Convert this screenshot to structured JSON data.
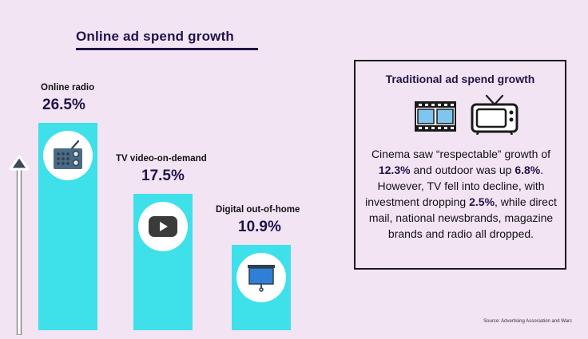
{
  "chart_data": {
    "type": "bar",
    "title": "Online ad spend growth",
    "categories": [
      "Online radio",
      "TV video-on-demand",
      "Digital out-of-home"
    ],
    "values": [
      26.5,
      17.5,
      10.9
    ],
    "value_labels": [
      "26.5%",
      "17.5%",
      "10.9%"
    ],
    "bar_color": "#3ee0ea",
    "icons": [
      "radio-icon",
      "video-play-icon",
      "screen-icon"
    ]
  },
  "panel": {
    "title": "Traditional ad spend growth",
    "icons": [
      "film-strip-icon",
      "tv-icon"
    ],
    "body": [
      {
        "t": "Cinema saw “respectable” growth of ",
        "b": false
      },
      {
        "t": "12.3%",
        "b": true
      },
      {
        "t": " and outdoor was up ",
        "b": false
      },
      {
        "t": "6.8%",
        "b": true
      },
      {
        "t": ". However, TV fell into decline, with investment dropping ",
        "b": false
      },
      {
        "t": "2.5%",
        "b": true
      },
      {
        "t": ", while direct mail, national newsbrands, magazine brands and radio all dropped.",
        "b": false
      }
    ]
  },
  "source": "Source: Advertising Association and Warc",
  "colors": {
    "title": "#1f1449",
    "background": "#f3e4f4",
    "bar": "#3ee0ea"
  }
}
